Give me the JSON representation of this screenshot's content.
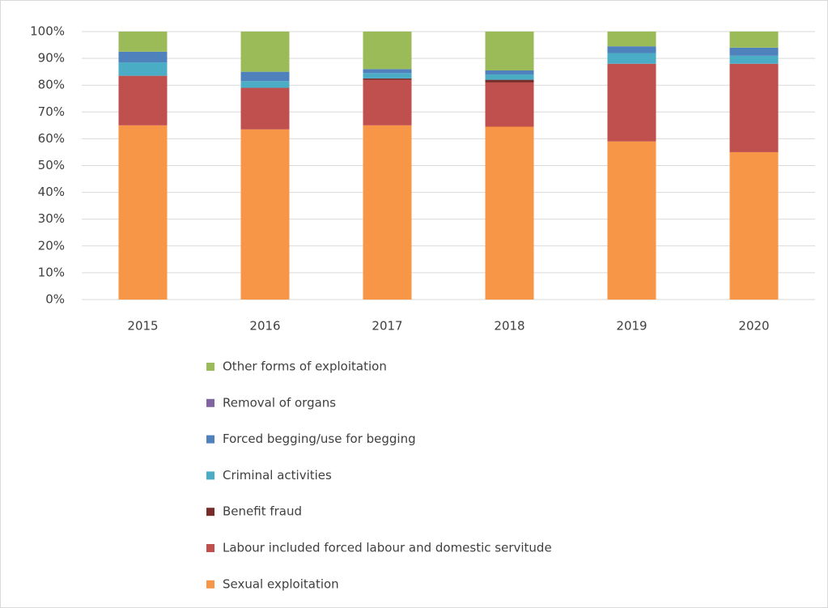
{
  "chart_data": {
    "type": "stacked_bar",
    "categories": [
      "2015",
      "2016",
      "2017",
      "2018",
      "2019",
      "2020"
    ],
    "series": [
      {
        "name": "Sexual exploitation",
        "color": "#f79646",
        "values": [
          65,
          63.5,
          65,
          64.5,
          59,
          55
        ]
      },
      {
        "name": "Labour included forced labour and domestic servitude",
        "color": "#c0504d",
        "values": [
          18.5,
          15.5,
          17,
          16.5,
          29,
          33
        ]
      },
      {
        "name": "Benefit fraud",
        "color": "#772c2a",
        "values": [
          0,
          0,
          0.5,
          1,
          0,
          0
        ]
      },
      {
        "name": "Criminal activities",
        "color": "#4bacc6",
        "values": [
          5,
          2.5,
          2,
          2,
          4,
          3
        ]
      },
      {
        "name": "Forced begging/use for begging",
        "color": "#4f81bd",
        "values": [
          4,
          3.5,
          1.5,
          1.5,
          2.5,
          3
        ]
      },
      {
        "name": "Removal of organs",
        "color": "#8064a2",
        "values": [
          0,
          0,
          0,
          0,
          0,
          0
        ]
      },
      {
        "name": "Other forms of exploitation",
        "color": "#9bbb59",
        "values": [
          7.5,
          15,
          14,
          14.5,
          5.5,
          6
        ]
      }
    ],
    "ylim": [
      0,
      100
    ],
    "yticks": [
      {
        "value": 0,
        "label": "0%"
      },
      {
        "value": 10,
        "label": "10%"
      },
      {
        "value": 20,
        "label": "20%"
      },
      {
        "value": 30,
        "label": "30%"
      },
      {
        "value": 40,
        "label": "40%"
      },
      {
        "value": 50,
        "label": "50%"
      },
      {
        "value": 60,
        "label": "60%"
      },
      {
        "value": 70,
        "label": "70%"
      },
      {
        "value": 80,
        "label": "80%"
      },
      {
        "value": 90,
        "label": "90%"
      },
      {
        "value": 100,
        "label": "100%"
      }
    ],
    "grid": true,
    "legend": "bottom"
  }
}
